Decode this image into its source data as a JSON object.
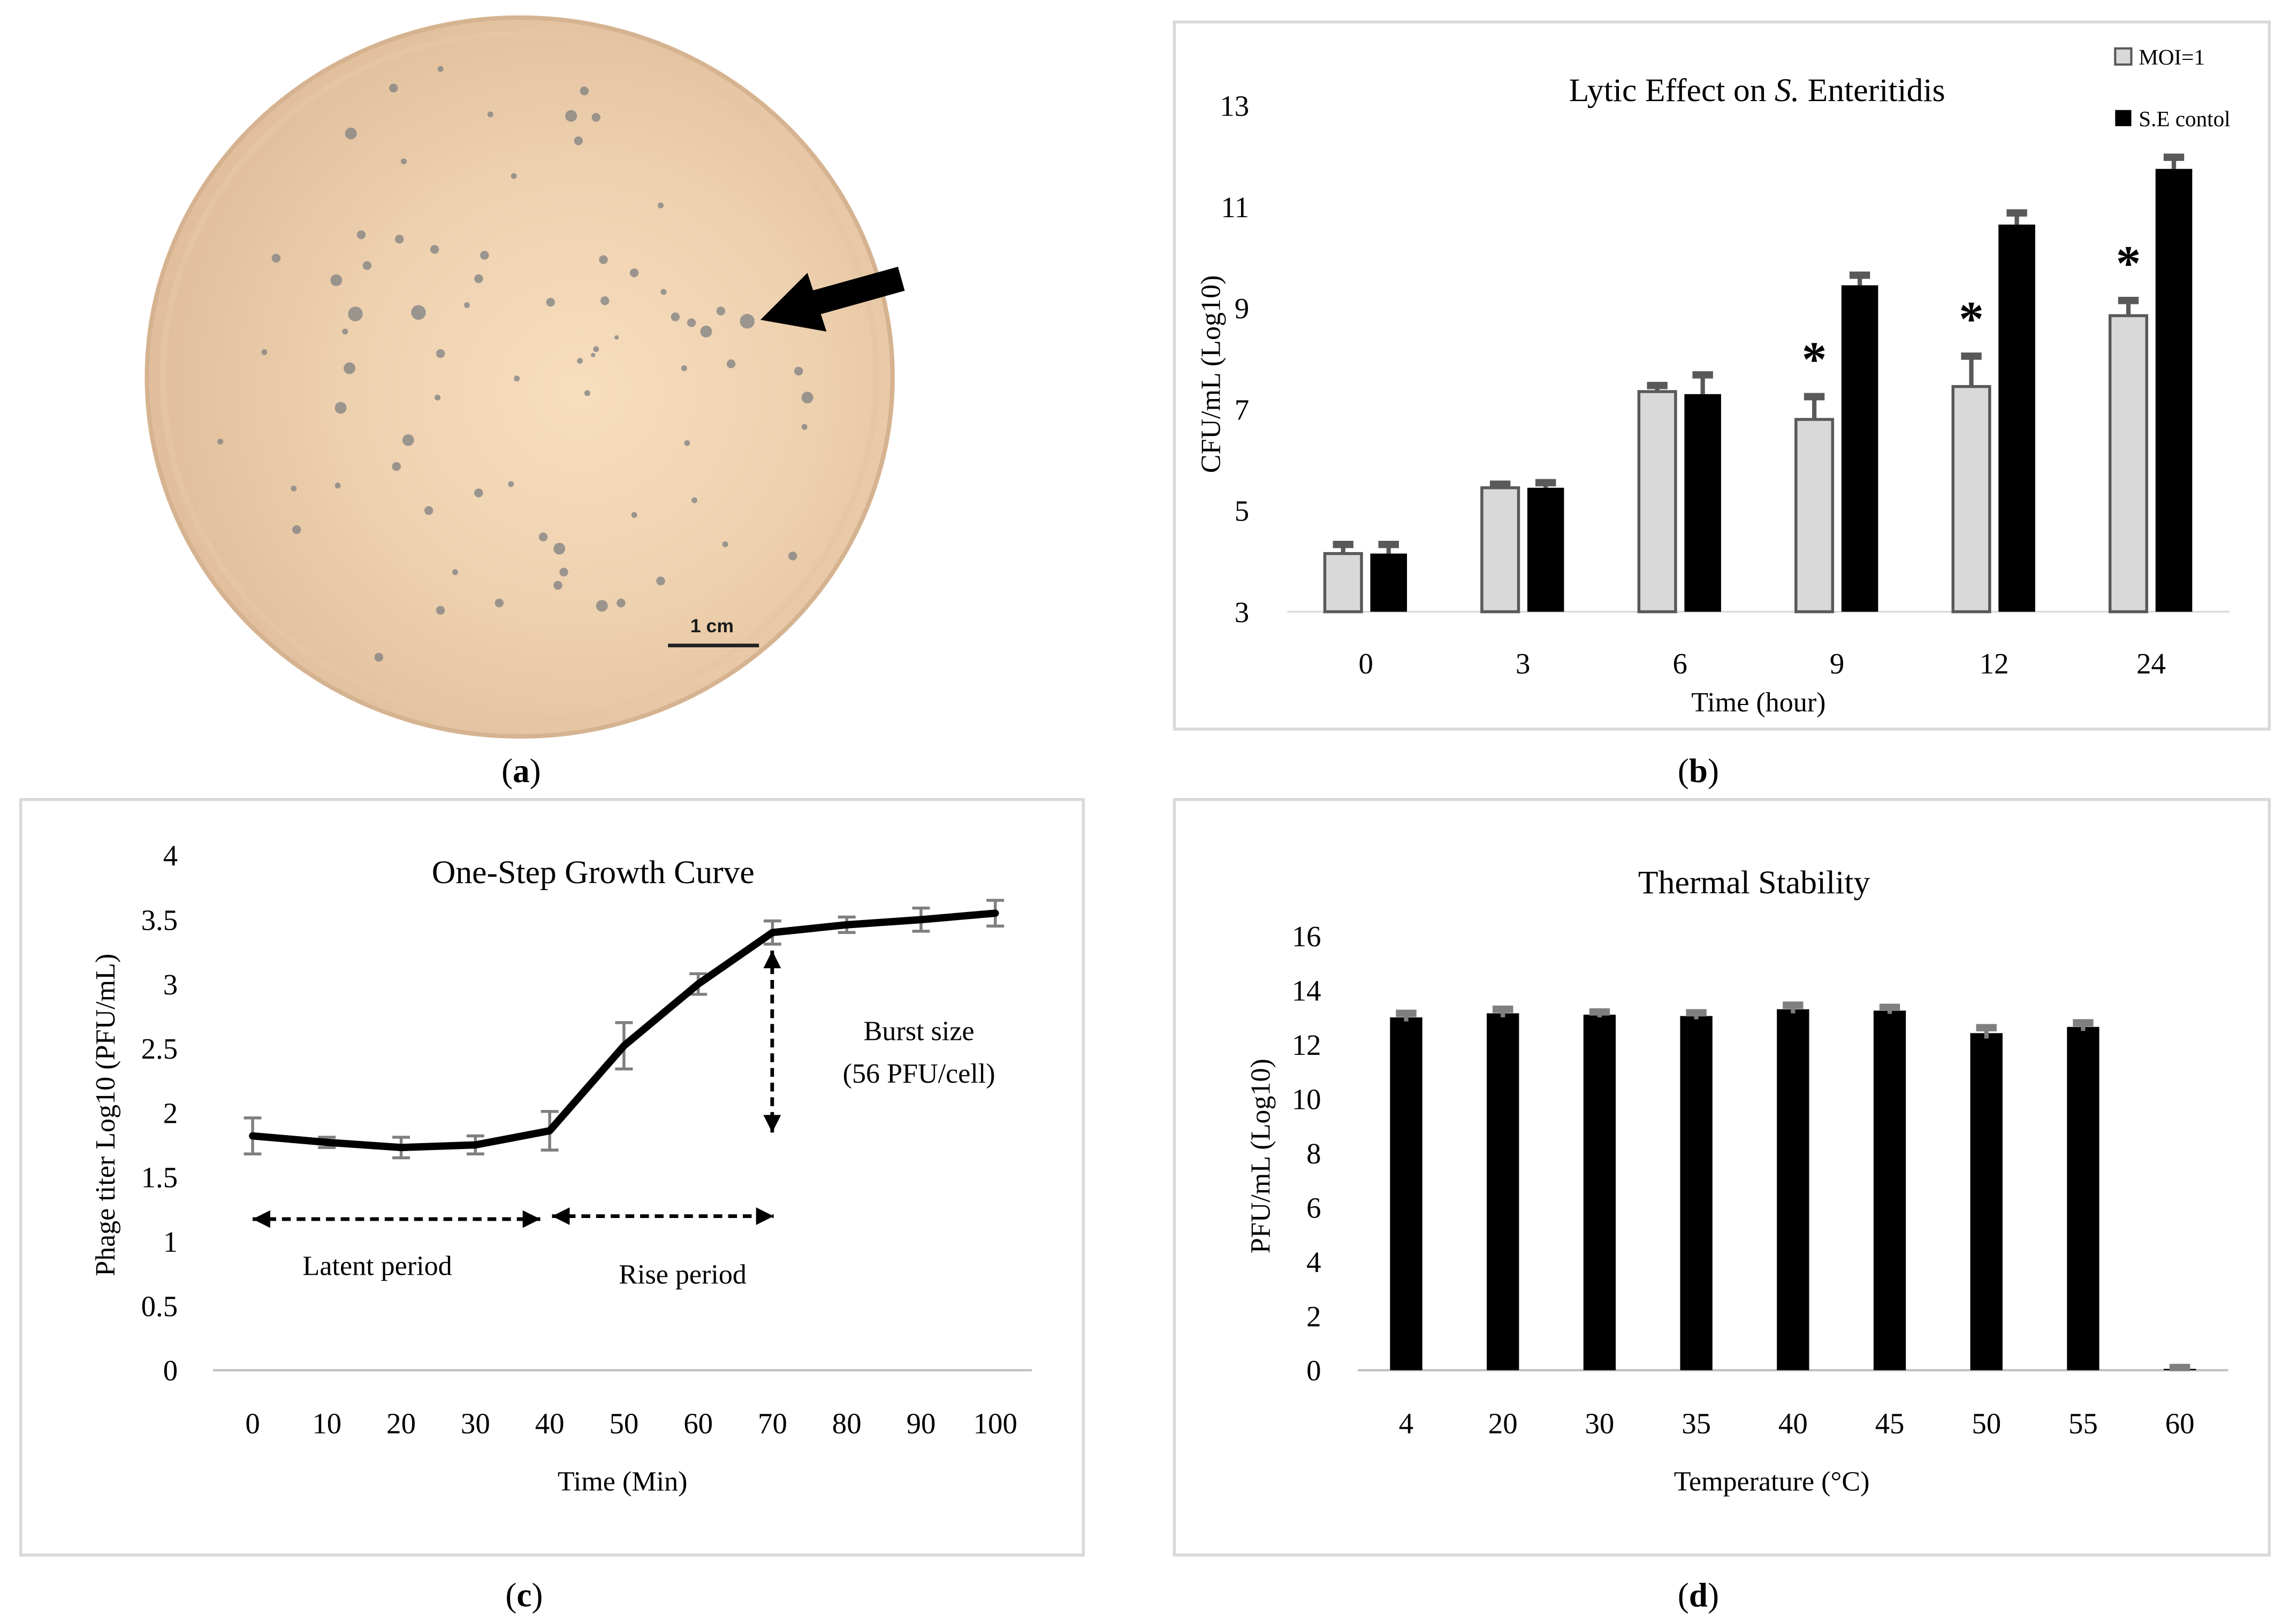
{
  "figure": {
    "panel_labels": [
      "(a)",
      "(b)",
      "(c)",
      "(d)"
    ]
  },
  "photo": {
    "scale_bar_label": "1 cm"
  },
  "colors": {
    "moi_bar": "#d9d9d9",
    "moi_bar_edge": "#595959",
    "control_bar": "#000000",
    "error_bar": "#595959",
    "error_bar_light": "#7f7f7f",
    "line": "#000000",
    "panel_border": "#d9d9d9",
    "axis": "#bfbfbf",
    "plaque": "#858585",
    "pointer": "#000000"
  },
  "chart_data": [
    {
      "type": "bar",
      "title": "Lytic Effect on S. Enteritidis",
      "title_italic": "S.",
      "xlabel": "Time (hour)",
      "ylabel": "CFU/mL (Log10)",
      "categories": [
        "0",
        "3",
        "6",
        "9",
        "12",
        "24"
      ],
      "ylim": [
        3,
        13
      ],
      "yticks": [
        3,
        5,
        7,
        9,
        11,
        13
      ],
      "series": [
        {
          "name": "MOI=1",
          "color": "#d9d9d9",
          "values": [
            4.15,
            5.45,
            7.35,
            6.8,
            7.45,
            8.85
          ],
          "errors": [
            0.18,
            0.07,
            0.12,
            0.45,
            0.6,
            0.3
          ]
        },
        {
          "name": "S.E contol",
          "color": "#000000",
          "values": [
            4.15,
            5.45,
            7.3,
            9.45,
            10.65,
            11.75
          ],
          "errors": [
            0.18,
            0.1,
            0.38,
            0.2,
            0.23,
            0.23
          ]
        }
      ],
      "significance": [
        {
          "series": 0,
          "category": 3,
          "mark": "*"
        },
        {
          "series": 0,
          "category": 4,
          "mark": "*"
        },
        {
          "series": 0,
          "category": 5,
          "mark": "*"
        }
      ]
    },
    {
      "type": "line",
      "title": "One-Step Growth Curve",
      "xlabel": "Time (Min)",
      "ylabel": "Phage titer Log10 (PFU/mL)",
      "x": [
        0,
        10,
        20,
        30,
        40,
        50,
        60,
        70,
        80,
        90,
        100
      ],
      "y": [
        1.82,
        1.77,
        1.73,
        1.75,
        1.86,
        2.52,
        3.0,
        3.4,
        3.46,
        3.5,
        3.55
      ],
      "errors": [
        0.14,
        0.04,
        0.08,
        0.07,
        0.15,
        0.18,
        0.08,
        0.09,
        0.06,
        0.09,
        0.1
      ],
      "xlim": [
        0,
        100
      ],
      "ylim": [
        0,
        4
      ],
      "yticks": [
        0,
        0.5,
        1,
        1.5,
        2,
        2.5,
        3,
        3.5,
        4
      ],
      "annotations": {
        "latent_period": "Latent period",
        "rise_period": "Rise period",
        "burst_size": "Burst size",
        "burst_value": "(56 PFU/cell)"
      }
    },
    {
      "type": "bar",
      "title": "Thermal Stability",
      "xlabel": "Temperature (°C)",
      "ylabel": "PFU/mL (Log10)",
      "categories": [
        "4",
        "20",
        "30",
        "35",
        "40",
        "45",
        "50",
        "55",
        "60"
      ],
      "values": [
        13.0,
        13.15,
        13.1,
        13.05,
        13.3,
        13.25,
        12.42,
        12.65,
        0.05
      ],
      "errors": [
        0.15,
        0.15,
        0.1,
        0.12,
        0.15,
        0.12,
        0.2,
        0.15,
        0.05
      ],
      "ylim": [
        0,
        16
      ],
      "yticks": [
        0,
        2,
        4,
        6,
        8,
        10,
        12,
        14,
        16
      ]
    }
  ]
}
